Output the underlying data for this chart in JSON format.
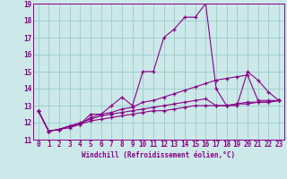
{
  "title": "",
  "xlabel": "Windchill (Refroidissement éolien,°C)",
  "ylabel": "",
  "bg_color": "#cce8e8",
  "line_color": "#880088",
  "grid_color": "#99cccc",
  "xlim": [
    -0.5,
    23.5
  ],
  "ylim": [
    11,
    19
  ],
  "xticks": [
    0,
    1,
    2,
    3,
    4,
    5,
    6,
    7,
    8,
    9,
    10,
    11,
    12,
    13,
    14,
    15,
    16,
    17,
    18,
    19,
    20,
    21,
    22,
    23
  ],
  "yticks": [
    11,
    12,
    13,
    14,
    15,
    16,
    17,
    18,
    19
  ],
  "series": [
    [
      12.7,
      11.5,
      11.6,
      11.8,
      11.9,
      12.5,
      12.5,
      13.0,
      13.5,
      13.0,
      15.0,
      15.0,
      17.0,
      17.5,
      18.2,
      18.2,
      19.0,
      14.0,
      13.0,
      13.0,
      15.0,
      14.5,
      13.8,
      13.3
    ],
    [
      12.7,
      11.5,
      11.6,
      11.8,
      11.9,
      12.3,
      12.5,
      12.6,
      12.8,
      12.9,
      13.2,
      13.3,
      13.5,
      13.7,
      13.9,
      14.1,
      14.3,
      14.5,
      14.6,
      14.7,
      14.8,
      13.3,
      13.3,
      13.3
    ],
    [
      12.7,
      11.5,
      11.6,
      11.8,
      12.0,
      12.2,
      12.4,
      12.5,
      12.6,
      12.7,
      12.8,
      12.9,
      13.0,
      13.1,
      13.2,
      13.3,
      13.4,
      13.0,
      13.0,
      13.1,
      13.2,
      13.2,
      13.2,
      13.3
    ],
    [
      12.7,
      11.5,
      11.6,
      11.7,
      11.9,
      12.1,
      12.2,
      12.3,
      12.4,
      12.5,
      12.6,
      12.7,
      12.7,
      12.8,
      12.9,
      13.0,
      13.0,
      13.0,
      13.0,
      13.1,
      13.1,
      13.2,
      13.2,
      13.3
    ]
  ],
  "tick_fontsize": 5.5,
  "xlabel_fontsize": 5.5,
  "marker_size": 2.5,
  "line_width": 0.8
}
